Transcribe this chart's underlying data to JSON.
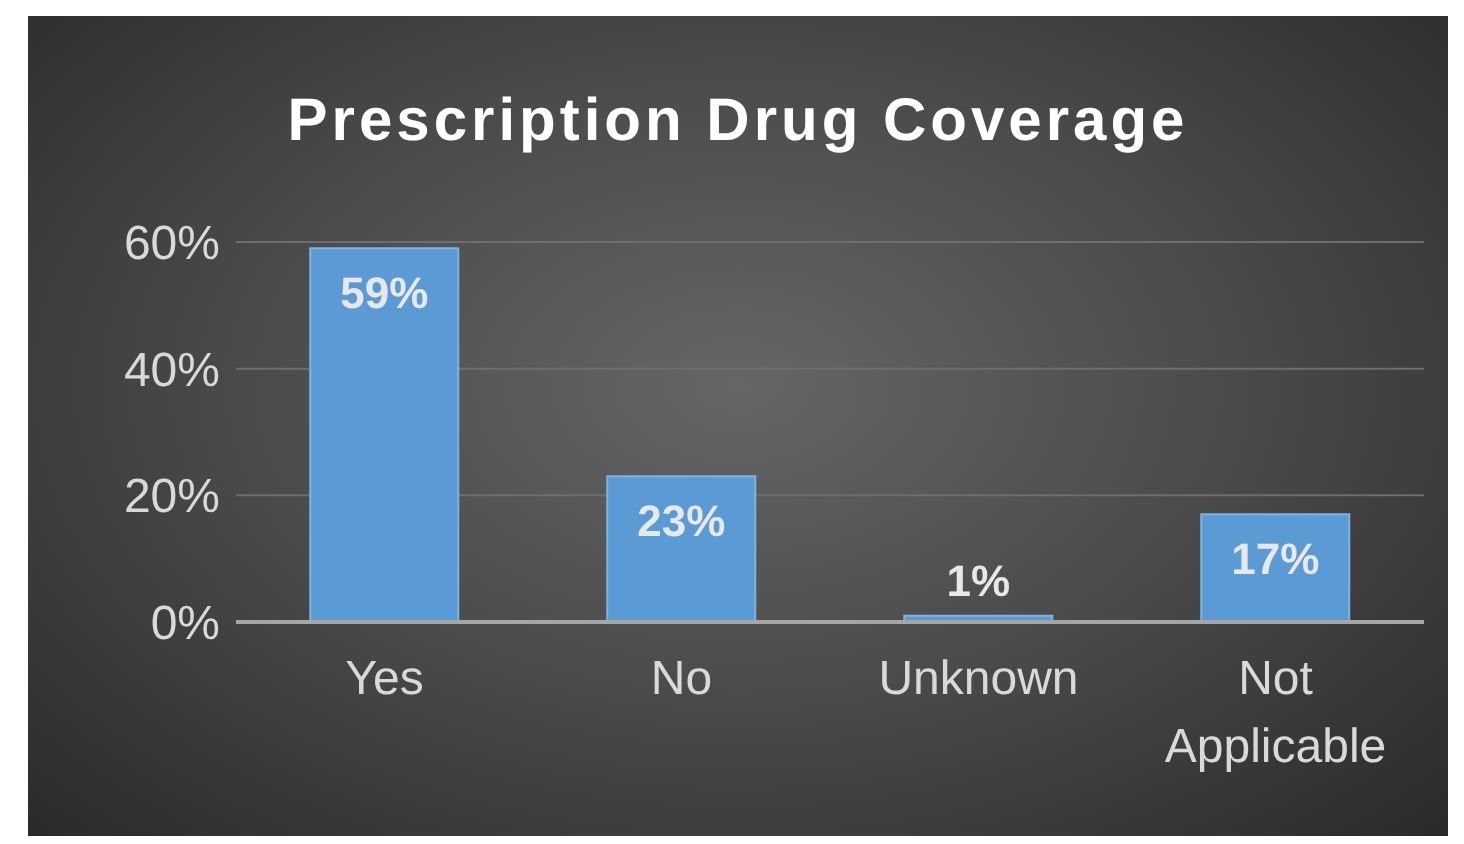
{
  "chart_data": {
    "type": "bar",
    "title": "Prescription Drug Coverage",
    "categories": [
      "Yes",
      "No",
      "Unknown",
      "Not Applicable"
    ],
    "values": [
      59,
      23,
      1,
      17
    ],
    "value_labels": [
      "59%",
      "23%",
      "1%",
      "17%"
    ],
    "color": "#5b9bd5",
    "ylim": [
      0,
      60
    ],
    "yticks": [
      {
        "value": 0,
        "label": "0%"
      },
      {
        "value": 20,
        "label": "20%"
      },
      {
        "value": 40,
        "label": "40%"
      },
      {
        "value": 60,
        "label": "60%"
      }
    ],
    "grid": "y",
    "legend": false
  }
}
